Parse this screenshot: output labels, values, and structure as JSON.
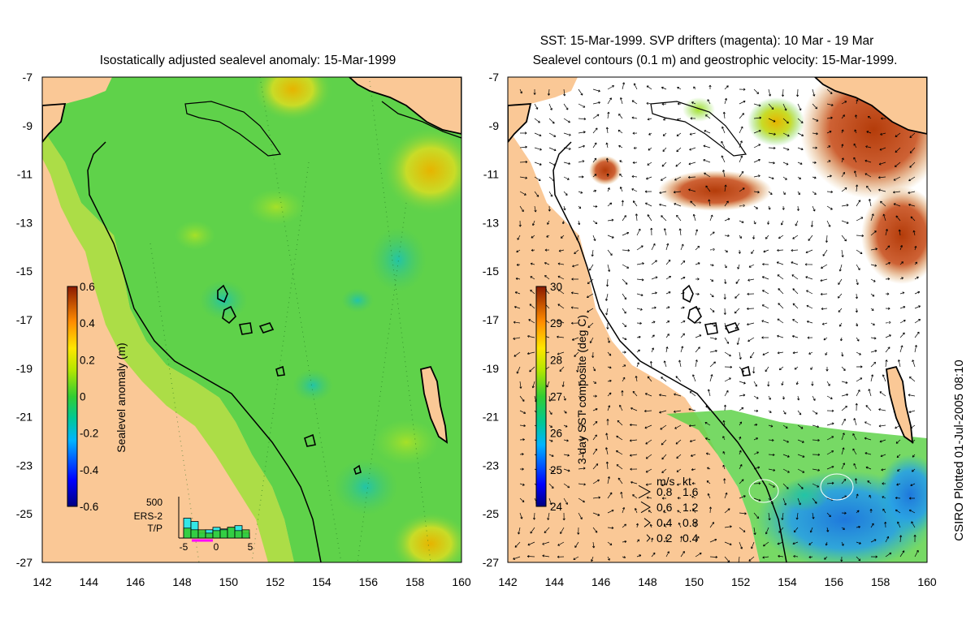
{
  "left_panel": {
    "title": "Isostatically adjusted sealevel anomaly: 15-Mar-1999",
    "colorbar": {
      "label": "Sealevel anomaly (m)",
      "ticks": [
        "0.6",
        "0.4",
        "0.2",
        "0",
        "-0.2",
        "-0.4",
        "-0.6"
      ]
    },
    "inset": {
      "ymax_label": "500",
      "x_ticks": [
        "-5",
        "0",
        "5"
      ],
      "legend": [
        {
          "label": "ERS-2",
          "color": "#33e6e6"
        },
        {
          "label": "T/P",
          "color": "#33cc33"
        }
      ],
      "ers2_counts": [
        240,
        200,
        60,
        100,
        130,
        110,
        130,
        150,
        60
      ],
      "tp_counts": [
        120,
        100,
        100,
        60,
        90,
        100,
        130,
        90,
        100
      ]
    }
  },
  "right_panel": {
    "title_line1": "SST: 15-Mar-1999. SVP drifters (magenta): 10 Mar - 19 Mar",
    "title_line2": "Sealevel contours (0.1 m) and geostrophic velocity: 15-Mar-1999.",
    "colorbar": {
      "label": "3-day SST composite (deg C)",
      "ticks": [
        "30",
        "29",
        "28",
        "27",
        "26",
        "25",
        "24"
      ]
    },
    "velocity_key": {
      "header_ms": "m/s",
      "header_kt": "kt",
      "rows": [
        {
          "ms": "0.8",
          "kt": "1.6"
        },
        {
          "ms": "0.6",
          "kt": "1.2"
        },
        {
          "ms": "0.4",
          "kt": "0.8"
        },
        {
          "ms": "0.2",
          "kt": "0.4"
        }
      ]
    }
  },
  "axes": {
    "lat_ticks": [
      "-7",
      "-9",
      "-11",
      "-13",
      "-15",
      "-17",
      "-19",
      "-21",
      "-23",
      "-25",
      "-27"
    ],
    "lon_ticks": [
      "142",
      "144",
      "146",
      "148",
      "150",
      "152",
      "154",
      "156",
      "158",
      "160"
    ]
  },
  "credit": "CSIRO Plotted 01-Jul-2005 08:10",
  "colors": {
    "land": "#fac896",
    "ocean_green": "#5fd24a",
    "coast": "#000000"
  }
}
